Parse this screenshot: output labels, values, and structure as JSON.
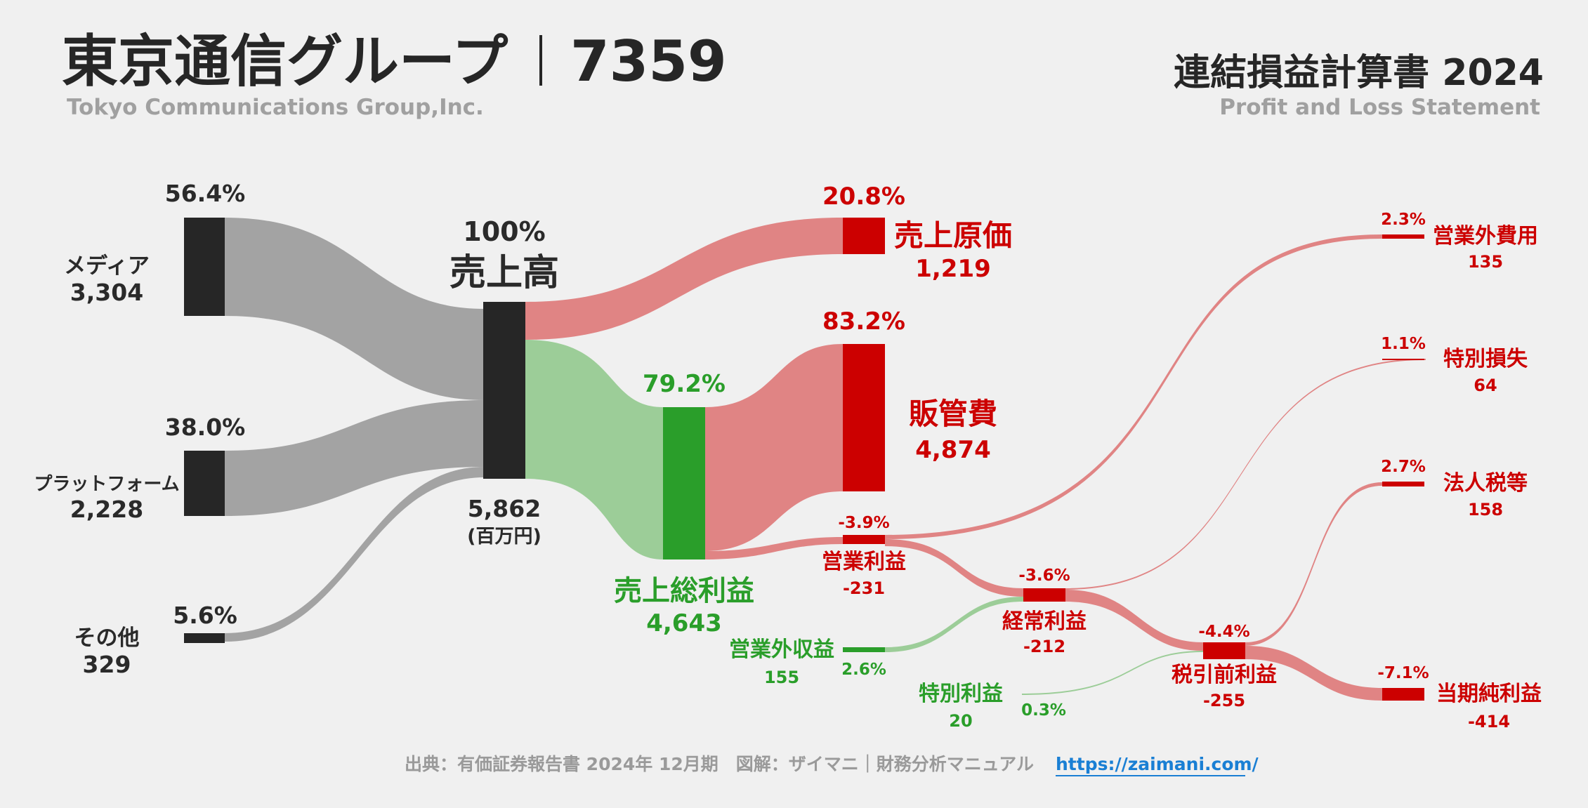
{
  "header": {
    "company_jp": "東京通信グループ",
    "ticker": "7359",
    "company_en": "Tokyo Communications Group,Inc.",
    "statement_jp": "連結損益計算書 2024",
    "statement_en": "Profit and Loss Statement"
  },
  "footer": {
    "source": "出典：有価証券報告書 2024年 12月期　図解：ザイマニ｜財務分析マニュアル",
    "link": "https://zaimani.com/"
  },
  "colors": {
    "dark": "#262626",
    "gray_flow": "#a3a3a3",
    "red": "#cc0000",
    "red_flow": "#e08484",
    "green": "#2a9e2a",
    "green_flow": "#9ccd98"
  },
  "chart_data": {
    "type": "sankey",
    "unit": "(百万円)",
    "nodes": [
      {
        "id": "media",
        "name": "メディア",
        "value": "3,304",
        "pct": "56.4%"
      },
      {
        "id": "platform",
        "name": "プラットフォーム",
        "value": "2,228",
        "pct": "38.0%"
      },
      {
        "id": "other",
        "name": "その他",
        "value": "329",
        "pct": "5.6%"
      },
      {
        "id": "revenue",
        "name": "売上高",
        "value": "5,862",
        "pct": "100%"
      },
      {
        "id": "cogs",
        "name": "売上原価",
        "value": "1,219",
        "pct": "20.8%"
      },
      {
        "id": "gross",
        "name": "売上総利益",
        "value": "4,643",
        "pct": "79.2%"
      },
      {
        "id": "sga",
        "name": "販管費",
        "value": "4,874",
        "pct": "83.2%"
      },
      {
        "id": "op",
        "name": "営業利益",
        "value": "-231",
        "pct": "-3.9%"
      },
      {
        "id": "nonop_inc",
        "name": "営業外収益",
        "value": "155",
        "pct": "2.6%"
      },
      {
        "id": "nonop_exp",
        "name": "営業外費用",
        "value": "135",
        "pct": "2.3%"
      },
      {
        "id": "ordinary",
        "name": "経常利益",
        "value": "-212",
        "pct": "-3.6%"
      },
      {
        "id": "ext_gain",
        "name": "特別利益",
        "value": "20",
        "pct": "0.3%"
      },
      {
        "id": "ext_loss",
        "name": "特別損失",
        "value": "64",
        "pct": "1.1%"
      },
      {
        "id": "pretax",
        "name": "税引前利益",
        "value": "-255",
        "pct": "-4.4%"
      },
      {
        "id": "tax",
        "name": "法人税等",
        "value": "158",
        "pct": "2.7%"
      },
      {
        "id": "net",
        "name": "当期純利益",
        "value": "-414",
        "pct": "-7.1%"
      }
    ],
    "flows": [
      {
        "from": "media",
        "to": "revenue",
        "value": 3304
      },
      {
        "from": "platform",
        "to": "revenue",
        "value": 2228
      },
      {
        "from": "other",
        "to": "revenue",
        "value": 329
      },
      {
        "from": "revenue",
        "to": "cogs",
        "value": 1219
      },
      {
        "from": "revenue",
        "to": "gross",
        "value": 4643
      },
      {
        "from": "gross",
        "to": "sga",
        "value": 4874
      },
      {
        "from": "gross",
        "to": "op",
        "value": -231
      },
      {
        "from": "op",
        "to": "nonop_exp",
        "value": 135
      },
      {
        "from": "op",
        "to": "ordinary",
        "value": -231
      },
      {
        "from": "nonop_inc",
        "to": "ordinary",
        "value": 155
      },
      {
        "from": "ordinary",
        "to": "ext_loss",
        "value": 64
      },
      {
        "from": "ordinary",
        "to": "pretax",
        "value": -212
      },
      {
        "from": "ext_gain",
        "to": "pretax",
        "value": 20
      },
      {
        "from": "pretax",
        "to": "tax",
        "value": 158
      },
      {
        "from": "pretax",
        "to": "net",
        "value": -255
      }
    ]
  }
}
